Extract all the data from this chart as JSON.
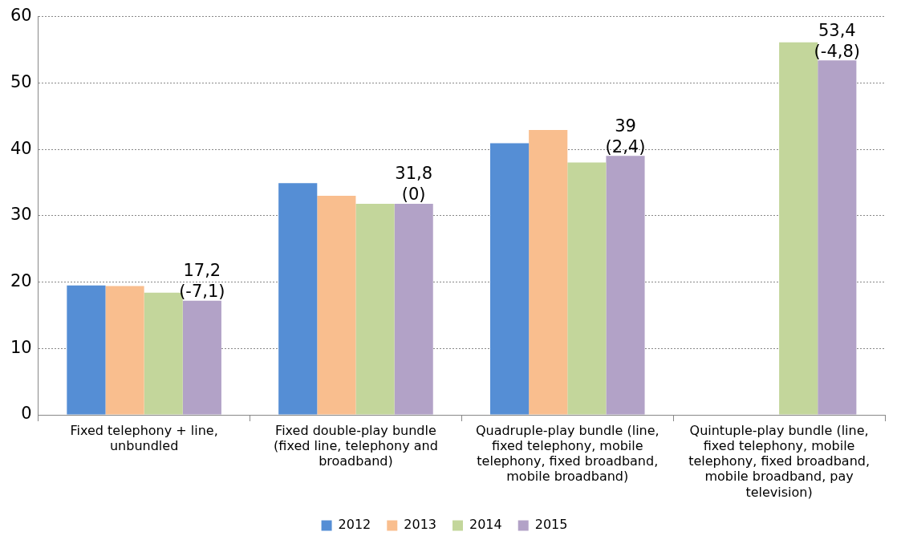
{
  "chart_data": {
    "type": "bar",
    "categories": [
      "Fixed telephony + line, unbundled",
      "Fixed double-play bundle (fixed line, telephony and broadband)",
      "Quadruple-play bundle (line, fixed telephony, mobile telephony, fixed broadband, mobile broadband)",
      "Quintuple-play bundle (line, fixed telephony, mobile telephony, fixed broadband, mobile broadband, pay television)"
    ],
    "series": [
      {
        "name": "2012",
        "color": "#558ed5",
        "values": [
          19.5,
          34.9,
          40.9,
          null
        ]
      },
      {
        "name": "2013",
        "color": "#f9be8e",
        "values": [
          19.4,
          33.0,
          42.9,
          null
        ]
      },
      {
        "name": "2014",
        "color": "#c3d69b",
        "values": [
          18.4,
          31.8,
          38.0,
          56.1
        ]
      },
      {
        "name": "2015",
        "color": "#b2a2c7",
        "values": [
          17.2,
          31.8,
          39,
          53.4
        ],
        "value_labels": [
          "17,2 (-7,1)",
          "31,8 (0)",
          "39 (2,4)",
          "53,4 (-4,8)"
        ]
      }
    ],
    "ylim": [
      0,
      60
    ],
    "yticks": [
      0,
      10,
      20,
      30,
      40,
      50,
      60
    ],
    "grid": "y",
    "legend": "bottom"
  }
}
